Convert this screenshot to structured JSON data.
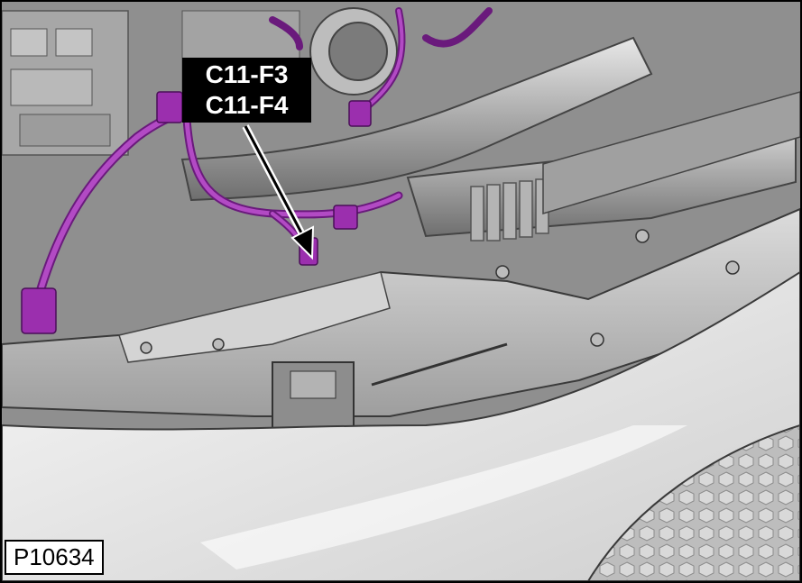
{
  "callout": {
    "line1": "C11-F3",
    "line2": "C11-F4"
  },
  "figure_number": "P10634",
  "colors": {
    "harness": "#9b2fae",
    "harness_dark": "#6a1a7c",
    "metal_light": "#e9e9e9",
    "metal_mid": "#b5b5b5",
    "metal_dark": "#5d5d5d",
    "label_bg": "#000000",
    "label_text": "#ffffff"
  }
}
